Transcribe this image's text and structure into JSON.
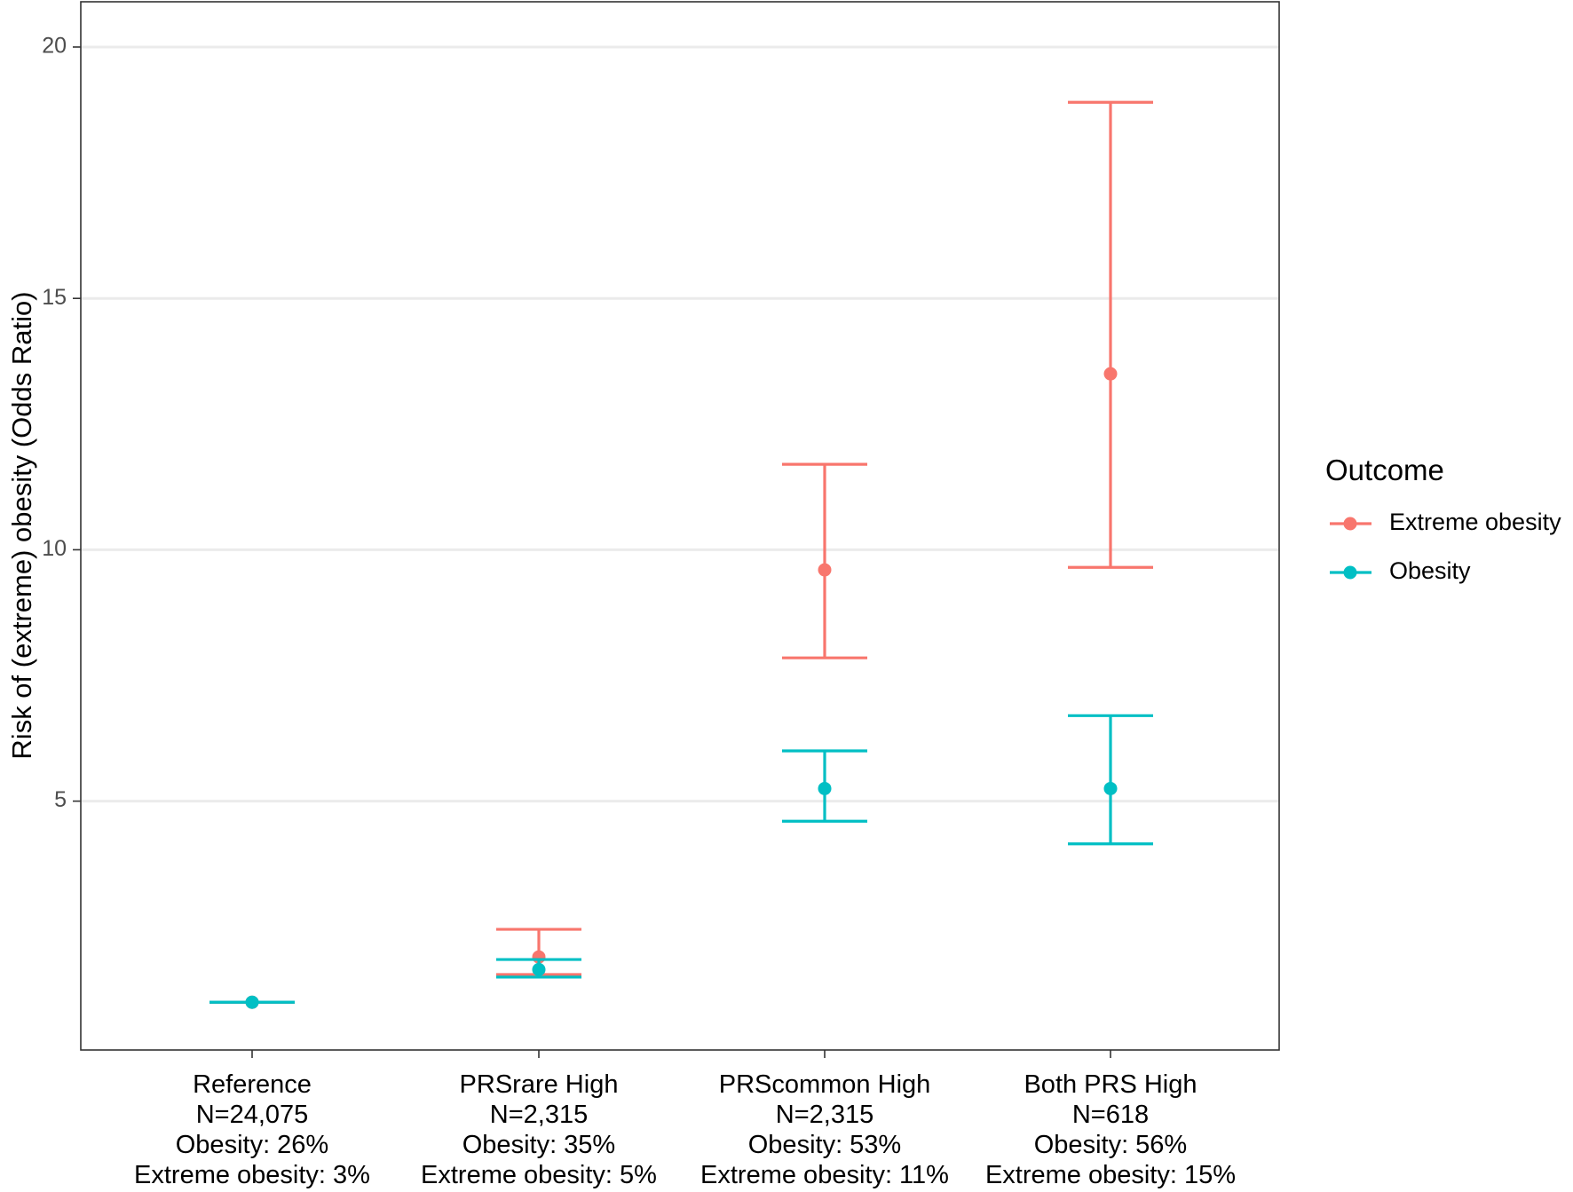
{
  "chart_data": {
    "type": "scatter",
    "title": "",
    "xlabel": "",
    "ylabel": "Risk of (extreme) obesity (Odds Ratio)",
    "ylim": [
      0.05,
      20.9
    ],
    "y_ticks": [
      5,
      10,
      15,
      20
    ],
    "grid": "horizontal major",
    "categories": [
      {
        "lines": [
          "Reference",
          "N=24,075",
          "Obesity: 26%",
          "Extreme obesity: 3%"
        ]
      },
      {
        "lines": [
          "PRSrare High",
          "N=2,315",
          "Obesity: 35%",
          "Extreme obesity: 5%"
        ]
      },
      {
        "lines": [
          "PRScommon High",
          "N=2,315",
          "Obesity: 53%",
          "Extreme obesity: 11%"
        ]
      },
      {
        "lines": [
          "Both PRS High",
          "N=618",
          "Obesity: 56%",
          "Extreme obesity: 15%"
        ]
      }
    ],
    "series": [
      {
        "name": "Extreme obesity",
        "color": "#f8766d",
        "values": [
          1.0,
          1.9,
          9.6,
          13.5
        ],
        "lower": [
          1.0,
          1.55,
          7.85,
          9.65
        ],
        "upper": [
          1.0,
          2.45,
          11.7,
          18.9
        ]
      },
      {
        "name": "Obesity",
        "color": "#00bfc4",
        "values": [
          1.0,
          1.65,
          5.25,
          5.25
        ],
        "lower": [
          1.0,
          1.5,
          4.6,
          4.15
        ],
        "upper": [
          1.0,
          1.85,
          6.0,
          6.7
        ]
      }
    ],
    "legend": {
      "title": "Outcome",
      "position": "right",
      "entries": [
        "Extreme obesity",
        "Obesity"
      ]
    }
  }
}
